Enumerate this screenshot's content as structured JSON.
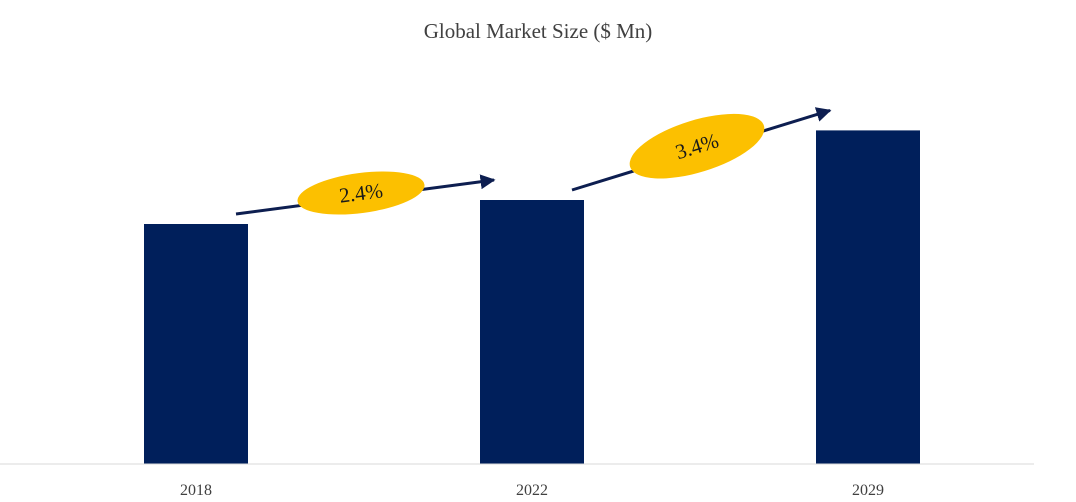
{
  "chart_data": {
    "type": "bar",
    "title": "Global Market Size ($ Mn)",
    "categories": [
      "2018",
      "2022",
      "2029"
    ],
    "values": [
      100,
      110,
      139
    ],
    "xlabel": "",
    "ylabel": "",
    "ylim": [
      0,
      150
    ],
    "grid": false,
    "legend": "none",
    "annotations": [
      {
        "label": "2.4%",
        "from": "2018",
        "to": "2022"
      },
      {
        "label": "3.4%",
        "from": "2022",
        "to": "2029"
      }
    ],
    "colors": {
      "bar": "#001f5b",
      "arrow": "#0d1e50",
      "badge": "#fcc000",
      "axis": "#d9d9d9",
      "text": "#404040"
    }
  }
}
